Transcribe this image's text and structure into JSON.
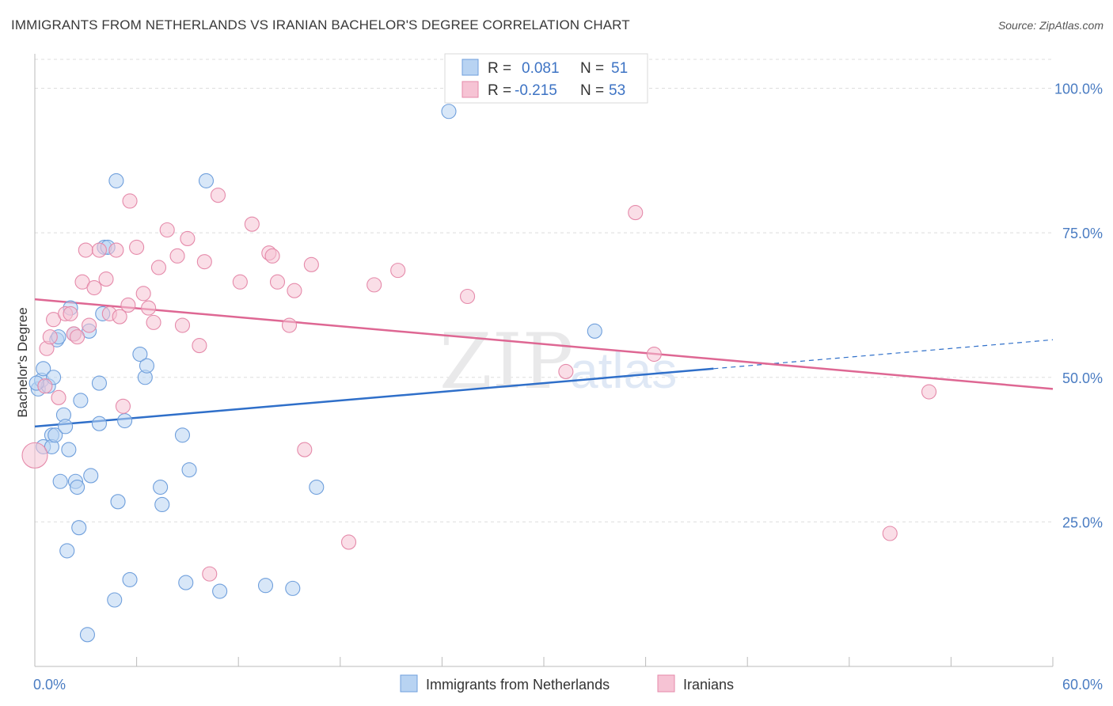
{
  "title": "IMMIGRANTS FROM NETHERLANDS VS IRANIAN BACHELOR'S DEGREE CORRELATION CHART",
  "source": "Source: ZipAtlas.com",
  "watermark": {
    "zip": "ZIP",
    "atlas": "atlas"
  },
  "colors": {
    "blue_fill": "#b8d3f2",
    "blue_stroke": "#6f9fdc",
    "blue_line": "#2f6fc9",
    "pink_fill": "#f6c3d4",
    "pink_stroke": "#e58aaa",
    "pink_line": "#de6793",
    "grid": "#dddddd",
    "tick_text": "#4a7cc2"
  },
  "stats": [
    {
      "r_label": "R =",
      "r_value": "0.081",
      "n_label": "N =",
      "n_value": "51",
      "color": "blue"
    },
    {
      "r_label": "R =",
      "r_value": "-0.215",
      "n_label": "N =",
      "n_value": "53",
      "color": "pink"
    }
  ],
  "chart_data": {
    "type": "scatter",
    "title": "IMMIGRANTS FROM NETHERLANDS VS IRANIAN BACHELOR'S DEGREE CORRELATION CHART",
    "xlabel": "",
    "ylabel": "Bachelor's Degree",
    "xlim": [
      0,
      60
    ],
    "ylim": [
      0,
      105
    ],
    "x_tick_labels": [
      {
        "value": 0,
        "label": "0.0%"
      },
      {
        "value": 60,
        "label": "60.0%"
      }
    ],
    "y_tick_labels": [
      {
        "value": 25,
        "label": "25.0%"
      },
      {
        "value": 50,
        "label": "50.0%"
      },
      {
        "value": 75,
        "label": "75.0%"
      },
      {
        "value": 100,
        "label": "100.0%"
      }
    ],
    "grid": "horizontal dashed",
    "legend_position": "bottom-center",
    "series": [
      {
        "name": "Immigrants from Netherlands",
        "color": "blue",
        "trend": {
          "x0": 0,
          "y0": 41.5,
          "x1": 40,
          "y1": 51.5,
          "dash_to_x": 60,
          "dash_to_y": 56.5
        },
        "points": [
          [
            0.2,
            48.0
          ],
          [
            0.4,
            49.5
          ],
          [
            0.5,
            51.5
          ],
          [
            0.5,
            38.0
          ],
          [
            0.8,
            48.5
          ],
          [
            1.0,
            40.0
          ],
          [
            1.0,
            38.0
          ],
          [
            1.1,
            50.0
          ],
          [
            1.2,
            40.0
          ],
          [
            1.3,
            56.5
          ],
          [
            1.4,
            57.0
          ],
          [
            1.5,
            32.0
          ],
          [
            1.7,
            43.5
          ],
          [
            1.8,
            41.5
          ],
          [
            1.9,
            20.0
          ],
          [
            2.0,
            37.5
          ],
          [
            2.1,
            62.0
          ],
          [
            2.3,
            57.5
          ],
          [
            2.4,
            32.0
          ],
          [
            2.5,
            31.0
          ],
          [
            2.6,
            24.0
          ],
          [
            2.7,
            46.0
          ],
          [
            3.1,
            5.5
          ],
          [
            3.2,
            58.0
          ],
          [
            3.3,
            33.0
          ],
          [
            3.8,
            49.0
          ],
          [
            3.8,
            42.0
          ],
          [
            4.0,
            61.0
          ],
          [
            4.1,
            72.5
          ],
          [
            4.3,
            72.5
          ],
          [
            4.7,
            11.5
          ],
          [
            4.8,
            84.0
          ],
          [
            4.9,
            28.5
          ],
          [
            5.3,
            42.5
          ],
          [
            5.6,
            15.0
          ],
          [
            6.2,
            54.0
          ],
          [
            6.5,
            50.0
          ],
          [
            6.6,
            52.0
          ],
          [
            7.4,
            31.0
          ],
          [
            7.5,
            28.0
          ],
          [
            8.7,
            40.0
          ],
          [
            8.9,
            14.5
          ],
          [
            9.1,
            34.0
          ],
          [
            10.1,
            84.0
          ],
          [
            10.9,
            13.0
          ],
          [
            13.6,
            14.0
          ],
          [
            15.2,
            13.5
          ],
          [
            16.6,
            31.0
          ],
          [
            24.4,
            96.0
          ],
          [
            33.0,
            58.0
          ],
          [
            0.1,
            49.0
          ]
        ],
        "point_sizes": {
          "default": 9,
          "large_index": 50,
          "large_size": 9
        }
      },
      {
        "name": "Iranians",
        "color": "pink",
        "trend": {
          "x0": 0,
          "y0": 63.5,
          "x1": 60,
          "y1": 48.0
        },
        "points": [
          [
            0.0,
            36.5
          ],
          [
            0.6,
            48.5
          ],
          [
            0.7,
            55.0
          ],
          [
            0.9,
            57.0
          ],
          [
            1.1,
            60.0
          ],
          [
            1.4,
            46.5
          ],
          [
            1.8,
            61.0
          ],
          [
            2.1,
            61.0
          ],
          [
            2.3,
            57.5
          ],
          [
            2.5,
            57.0
          ],
          [
            2.8,
            66.5
          ],
          [
            3.0,
            72.0
          ],
          [
            3.2,
            59.0
          ],
          [
            3.5,
            65.5
          ],
          [
            3.8,
            72.0
          ],
          [
            4.2,
            67.0
          ],
          [
            4.4,
            61.0
          ],
          [
            4.8,
            72.0
          ],
          [
            5.0,
            60.5
          ],
          [
            5.2,
            45.0
          ],
          [
            5.5,
            62.5
          ],
          [
            5.6,
            80.5
          ],
          [
            6.0,
            72.5
          ],
          [
            6.4,
            64.5
          ],
          [
            6.7,
            62.0
          ],
          [
            7.0,
            59.5
          ],
          [
            7.3,
            69.0
          ],
          [
            7.8,
            75.5
          ],
          [
            8.4,
            71.0
          ],
          [
            8.7,
            59.0
          ],
          [
            9.0,
            74.0
          ],
          [
            9.7,
            55.5
          ],
          [
            10.0,
            70.0
          ],
          [
            10.3,
            16.0
          ],
          [
            10.8,
            81.5
          ],
          [
            12.1,
            66.5
          ],
          [
            12.8,
            76.5
          ],
          [
            13.8,
            71.5
          ],
          [
            14.0,
            71.0
          ],
          [
            14.3,
            66.5
          ],
          [
            15.0,
            59.0
          ],
          [
            15.3,
            65.0
          ],
          [
            15.9,
            37.5
          ],
          [
            16.3,
            69.5
          ],
          [
            18.5,
            21.5
          ],
          [
            20.0,
            66.0
          ],
          [
            21.4,
            68.5
          ],
          [
            25.5,
            64.0
          ],
          [
            31.3,
            51.0
          ],
          [
            35.4,
            78.5
          ],
          [
            36.5,
            54.0
          ],
          [
            50.4,
            23.0
          ],
          [
            52.7,
            47.5
          ]
        ],
        "point_sizes": {
          "default": 9,
          "large_index": 0,
          "large_size": 16
        }
      }
    ]
  }
}
